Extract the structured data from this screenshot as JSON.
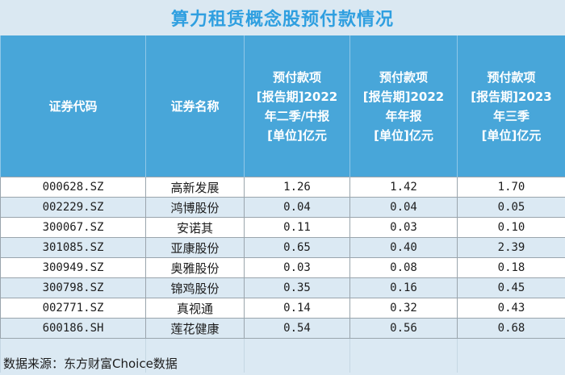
{
  "title": "算力租赁概念股预付款情况",
  "headers": {
    "code": "证券代码",
    "name": "证券名称",
    "col2022q2": [
      "预付款项",
      "[报告期]2022",
      "年二季/中报",
      "[单位]亿元"
    ],
    "col2022y": [
      "预付款项",
      "[报告期]2022",
      "年年报",
      "[单位]亿元"
    ],
    "col2023q3": [
      "预付款项",
      "[报告期]2023",
      "年三季",
      "[单位]亿元"
    ]
  },
  "rows": [
    {
      "code": "000628.SZ",
      "name": "高新发展",
      "v1": "1.26",
      "v2": "1.42",
      "v3": "1.70"
    },
    {
      "code": "002229.SZ",
      "name": "鸿博股份",
      "v1": "0.04",
      "v2": "0.04",
      "v3": "0.05"
    },
    {
      "code": "300067.SZ",
      "name": "安诺其",
      "v1": "0.11",
      "v2": "0.03",
      "v3": "0.10"
    },
    {
      "code": "301085.SZ",
      "name": "亚康股份",
      "v1": "0.65",
      "v2": "0.40",
      "v3": "2.39"
    },
    {
      "code": "300949.SZ",
      "name": "奥雅股份",
      "v1": "0.03",
      "v2": "0.08",
      "v3": "0.18"
    },
    {
      "code": "300798.SZ",
      "name": "锦鸡股份",
      "v1": "0.35",
      "v2": "0.16",
      "v3": "0.45"
    },
    {
      "code": "002771.SZ",
      "name": "真视通",
      "v1": "0.14",
      "v2": "0.32",
      "v3": "0.43"
    },
    {
      "code": "600186.SH",
      "name": "莲花健康",
      "v1": "0.54",
      "v2": "0.56",
      "v3": "0.68"
    }
  ],
  "source": "数据来源：东方财富Choice数据",
  "colors": {
    "title_text": "#2f9fe0",
    "header_bg": "#48a6d9",
    "stripe_bg": "#dbe9f3"
  }
}
